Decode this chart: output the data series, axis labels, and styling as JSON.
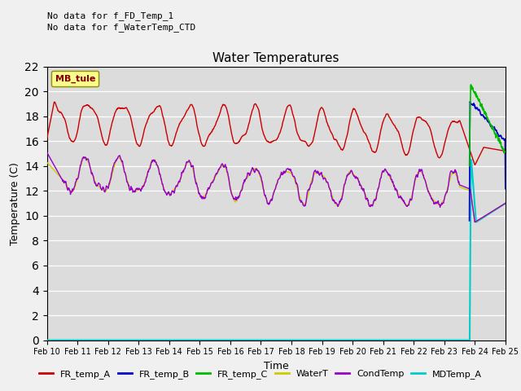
{
  "title": "Water Temperatures",
  "xlabel": "Time",
  "ylabel": "Temperature (C)",
  "annotation1": "No data for f_FD_Temp_1",
  "annotation2": "No data for f_WaterTemp_CTD",
  "legend_label": "MB_tule",
  "ylim": [
    0,
    22
  ],
  "yticks": [
    0,
    2,
    4,
    6,
    8,
    10,
    12,
    14,
    16,
    18,
    20,
    22
  ],
  "fig_bg": "#f0f0f0",
  "plot_bg": "#dcdcdc",
  "series_colors": {
    "FR_temp_A": "#cc0000",
    "FR_temp_B": "#0000cc",
    "FR_temp_C": "#00bb00",
    "WaterT": "#cccc00",
    "CondTemp": "#9900cc",
    "MDTemp_A": "#00cccc"
  },
  "xticklabels": [
    "Feb 10",
    "Feb 11",
    "Feb 12",
    "Feb 13",
    "Feb 14",
    "Feb 15",
    "Feb 16",
    "Feb 17",
    "Feb 18",
    "Feb 19",
    "Feb 20",
    "Feb 21",
    "Feb 22",
    "Feb 23",
    "Feb 24",
    "Feb 25"
  ]
}
